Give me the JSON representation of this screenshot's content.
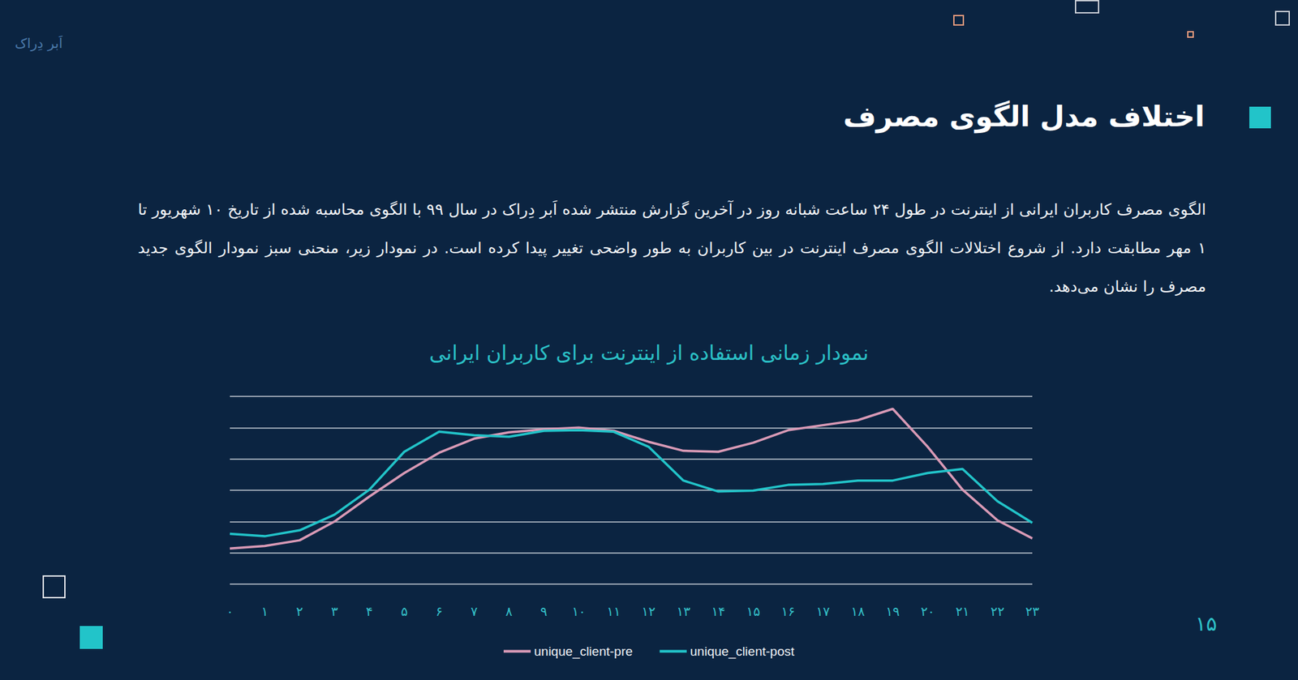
{
  "slide": {
    "logo": "اَبر دِراک",
    "title": "اختلاف مدل الگوی مصرف",
    "text": "الگوی مصرف کاربران ایرانی از اینترنت در طول ۲۴ ساعت شبانه روز در آخرین گزارش منتشر شده اَبر دِراک در سال ۹۹ با الگوی محاسبه شده از تاریخ ۱۰ شهریور تا ۱ مهر مطابقت دارد. از شروع اختلالات الگوی مصرف اینترنت در بین کاربران به طور واضحی تغییر پیدا کرده است. در نمودار زیر، منحنی سبز نمودار الگوی جدید مصرف را نشان می‌دهد.",
    "page_number": "۱۵"
  },
  "chart_data": {
    "type": "line",
    "title": "نمودار زمانی استفاده از اینترنت برای کاربران ایرانی",
    "categories": [
      "۰",
      "۱",
      "۲",
      "۳",
      "۴",
      "۵",
      "۶",
      "۷",
      "۸",
      "۹",
      "۱۰",
      "۱۱",
      "۱۲",
      "۱۳",
      "۱۴",
      "۱۵",
      "۱۶",
      "۱۷",
      "۱۸",
      "۱۹",
      "۲۰",
      "۲۱",
      "۲۲",
      "۲۳"
    ],
    "series": [
      {
        "name": "unique_client-pre",
        "color": "#d99ab6",
        "values": [
          1.14,
          1.22,
          1.4,
          2.0,
          2.8,
          3.55,
          4.2,
          4.65,
          4.85,
          4.95,
          5.0,
          4.9,
          4.55,
          4.26,
          4.23,
          4.52,
          4.92,
          5.08,
          5.24,
          5.6,
          4.39,
          3.02,
          2.04,
          1.46
        ]
      },
      {
        "name": "unique_client-post",
        "color": "#22c4c9",
        "values": [
          1.61,
          1.53,
          1.72,
          2.22,
          3.02,
          4.23,
          4.87,
          4.76,
          4.71,
          4.9,
          4.92,
          4.87,
          4.39,
          3.31,
          2.96,
          2.99,
          3.17,
          3.2,
          3.31,
          3.31,
          3.55,
          3.68,
          2.65,
          1.96
        ]
      }
    ],
    "ylim": [
      0,
      6
    ],
    "yticks": [
      0,
      1,
      2,
      3,
      4,
      5,
      6
    ],
    "grid": true,
    "legend": "bottom",
    "tick_labels": "x"
  }
}
